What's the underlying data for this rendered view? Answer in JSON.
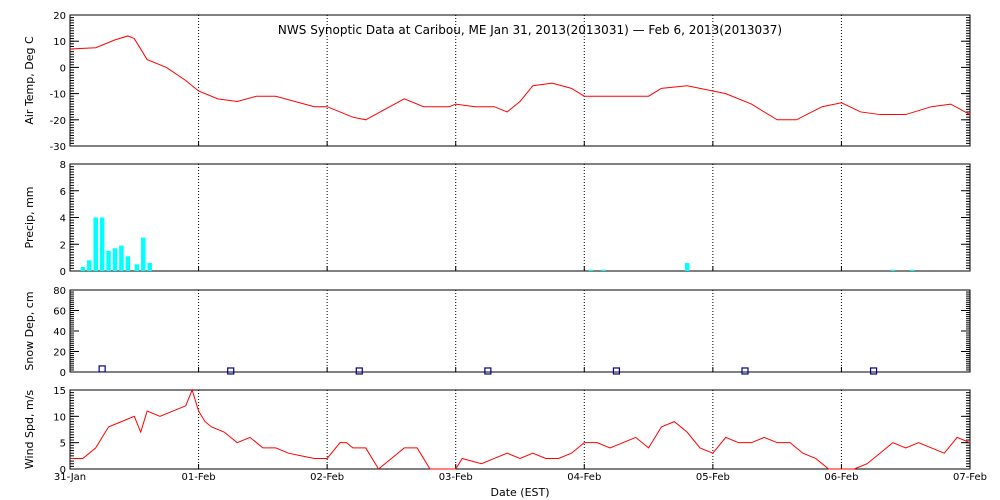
{
  "title": "NWS Synoptic Data at Caribou, ME    Jan 31, 2013(2013031) — Feb  6, 2013(2013037)",
  "xlabel": "Date (EST)",
  "x_ticks": [
    "31-Jan",
    "01-Feb",
    "02-Feb",
    "03-Feb",
    "04-Feb",
    "05-Feb",
    "06-Feb",
    "07-Feb"
  ],
  "colors": {
    "line": "#ff0000",
    "precip": "#00ffff",
    "snow": "#00008b",
    "axis": "#000000"
  },
  "chart_data": [
    {
      "type": "line",
      "ylabel": "Air Temp, Deg C",
      "ylim": [
        -30,
        20
      ],
      "yticks": [
        "-30",
        "-20",
        "-10",
        "0",
        "10",
        "20"
      ],
      "x_unit": "days since 31-Jan 00:00 EST",
      "series": [
        {
          "name": "",
          "x": [
            0,
            0.2,
            0.35,
            0.45,
            0.5,
            0.6,
            0.75,
            0.9,
            1.0,
            1.15,
            1.3,
            1.45,
            1.6,
            1.75,
            1.9,
            2.0,
            2.2,
            2.3,
            2.45,
            2.6,
            2.75,
            2.95,
            3.0,
            3.15,
            3.3,
            3.4,
            3.5,
            3.6,
            3.75,
            3.9,
            4.0,
            4.15,
            4.3,
            4.5,
            4.6,
            4.8,
            5.0,
            5.1,
            5.3,
            5.5,
            5.65,
            5.85,
            6.0,
            6.15,
            6.3,
            6.5,
            6.7,
            6.85,
            7.0
          ],
          "y": [
            7,
            7.5,
            10.5,
            12,
            11,
            3,
            0,
            -5,
            -9,
            -12,
            -13,
            -11,
            -11,
            -13,
            -15,
            -15,
            -19,
            -20,
            -16,
            -12,
            -15,
            -15,
            -14,
            -15,
            -15,
            -17,
            -13,
            -7,
            -6,
            -8,
            -11,
            -11,
            -11,
            -11,
            -8,
            -7,
            -9,
            -10,
            -14,
            -20,
            -20,
            -15,
            -13.5,
            -17,
            -18,
            -18,
            -15,
            -14,
            -18
          ]
        }
      ]
    },
    {
      "type": "bar",
      "ylabel": "Precip, mm",
      "ylim": [
        0,
        8
      ],
      "yticks": [
        "0",
        "2",
        "4",
        "6",
        "8"
      ],
      "bar_width_days": 0.035,
      "x": [
        0.1,
        0.15,
        0.2,
        0.25,
        0.3,
        0.35,
        0.4,
        0.45,
        0.52,
        0.57,
        0.62,
        4.05,
        4.15,
        4.8,
        6.4,
        6.55
      ],
      "values": [
        0.3,
        0.8,
        4,
        4,
        1.5,
        1.7,
        1.9,
        1.1,
        0.5,
        2.5,
        0.6,
        0.1,
        0.1,
        0.6,
        0.1,
        0.1
      ]
    },
    {
      "type": "scatter",
      "ylabel": "Snow Dep, cm",
      "ylim": [
        0,
        80
      ],
      "yticks": [
        "0",
        "20",
        "40",
        "60",
        "80"
      ],
      "x": [
        0.25,
        1.25,
        2.25,
        3.25,
        4.25,
        5.25,
        6.25
      ],
      "values": [
        3,
        1,
        1,
        1,
        1,
        1,
        1
      ]
    },
    {
      "type": "line",
      "ylabel": "Wind Spd, m/s",
      "ylim": [
        0,
        15
      ],
      "yticks": [
        "0",
        "5",
        "10",
        "15"
      ],
      "series": [
        {
          "name": "",
          "x": [
            0,
            0.1,
            0.2,
            0.3,
            0.4,
            0.5,
            0.55,
            0.6,
            0.7,
            0.8,
            0.9,
            0.95,
            1.0,
            1.05,
            1.1,
            1.2,
            1.3,
            1.4,
            1.5,
            1.6,
            1.7,
            1.8,
            1.9,
            2.0,
            2.1,
            2.15,
            2.2,
            2.3,
            2.4,
            2.45,
            2.55,
            2.6,
            2.7,
            2.8,
            2.9,
            3.0,
            3.05,
            3.2,
            3.3,
            3.4,
            3.5,
            3.6,
            3.7,
            3.8,
            3.9,
            4.0,
            4.1,
            4.2,
            4.3,
            4.4,
            4.5,
            4.6,
            4.7,
            4.8,
            4.9,
            5.0,
            5.1,
            5.2,
            5.3,
            5.4,
            5.5,
            5.6,
            5.7,
            5.8,
            5.9,
            6.0,
            6.1,
            6.2,
            6.3,
            6.4,
            6.5,
            6.6,
            6.7,
            6.8,
            6.9,
            7.0
          ],
          "y": [
            2,
            2,
            4,
            8,
            9,
            10,
            7,
            11,
            10,
            11,
            12,
            15,
            11,
            9,
            8,
            7,
            5,
            6,
            4,
            4,
            3,
            2.5,
            2,
            2,
            5,
            5,
            4,
            4,
            0,
            1,
            3,
            4,
            4,
            0,
            0,
            0,
            2,
            1,
            2,
            3,
            2,
            3,
            2,
            2,
            3,
            5,
            5,
            4,
            5,
            6,
            4,
            8,
            9,
            7,
            4,
            3,
            6,
            5,
            5,
            6,
            5,
            5,
            3,
            2,
            0,
            0,
            0,
            1,
            3,
            5,
            4,
            5,
            4,
            3,
            6,
            5
          ]
        }
      ]
    }
  ]
}
